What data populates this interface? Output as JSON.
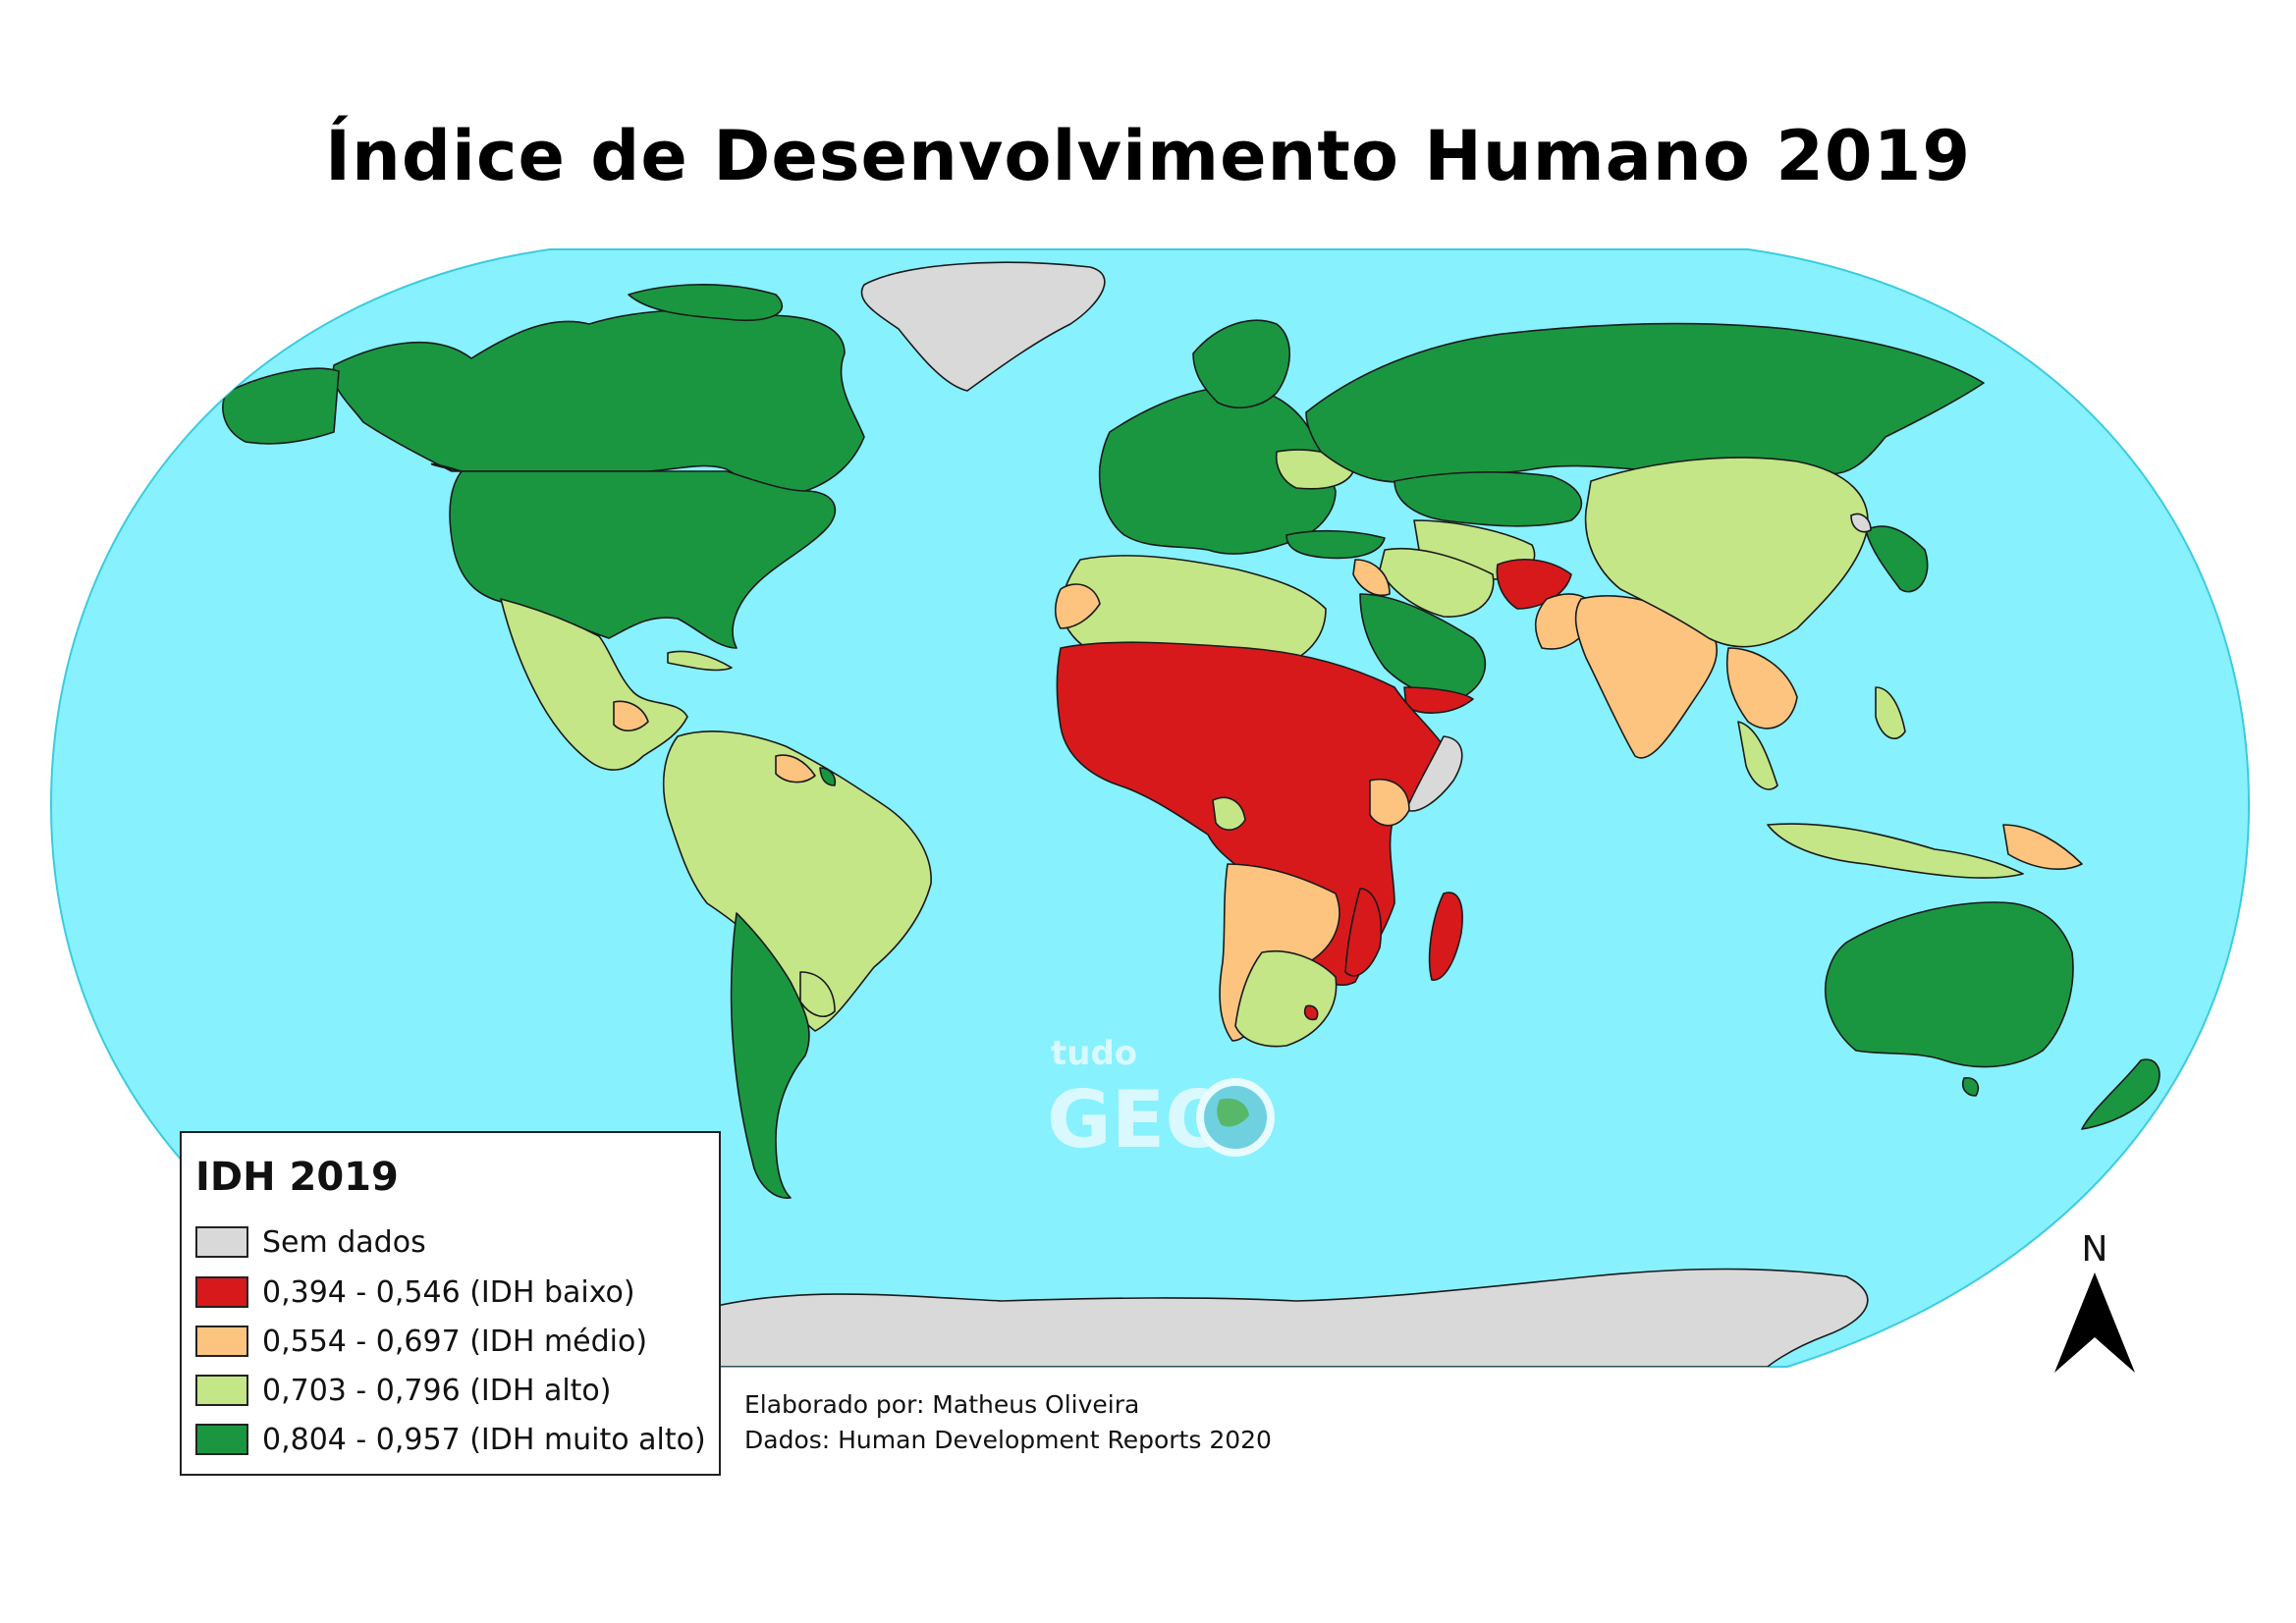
{
  "title": "Índice de Desenvolvimento Humano 2019",
  "colors": {
    "ocean": "#87f1fd",
    "no_data": "#d9d9d9",
    "low": "#d7191c",
    "medium": "#fdc480",
    "high": "#c4e687",
    "very_high": "#1a9641"
  },
  "legend": {
    "title": "IDH 2019",
    "items": [
      {
        "label": "Sem dados",
        "color": "#d9d9d9"
      },
      {
        "label": "0,394 - 0,546 (IDH baixo)",
        "color": "#d7191c"
      },
      {
        "label": "0,554 - 0,697 (IDH médio)",
        "color": "#fdc480"
      },
      {
        "label": "0,703 - 0,796 (IDH alto)",
        "color": "#c4e687"
      },
      {
        "label": "0,804 - 0,957 (IDH muito alto)",
        "color": "#1a9641"
      }
    ]
  },
  "credits": {
    "author": "Elaborado por: Matheus Oliveira",
    "source": "Dados: Human Development Reports 2020"
  },
  "north_arrow": {
    "label": "N",
    "icon": "north-arrow-icon"
  },
  "watermark": {
    "text_top": "tudo",
    "text_bottom": "GEO",
    "icon": "globe-icon"
  }
}
